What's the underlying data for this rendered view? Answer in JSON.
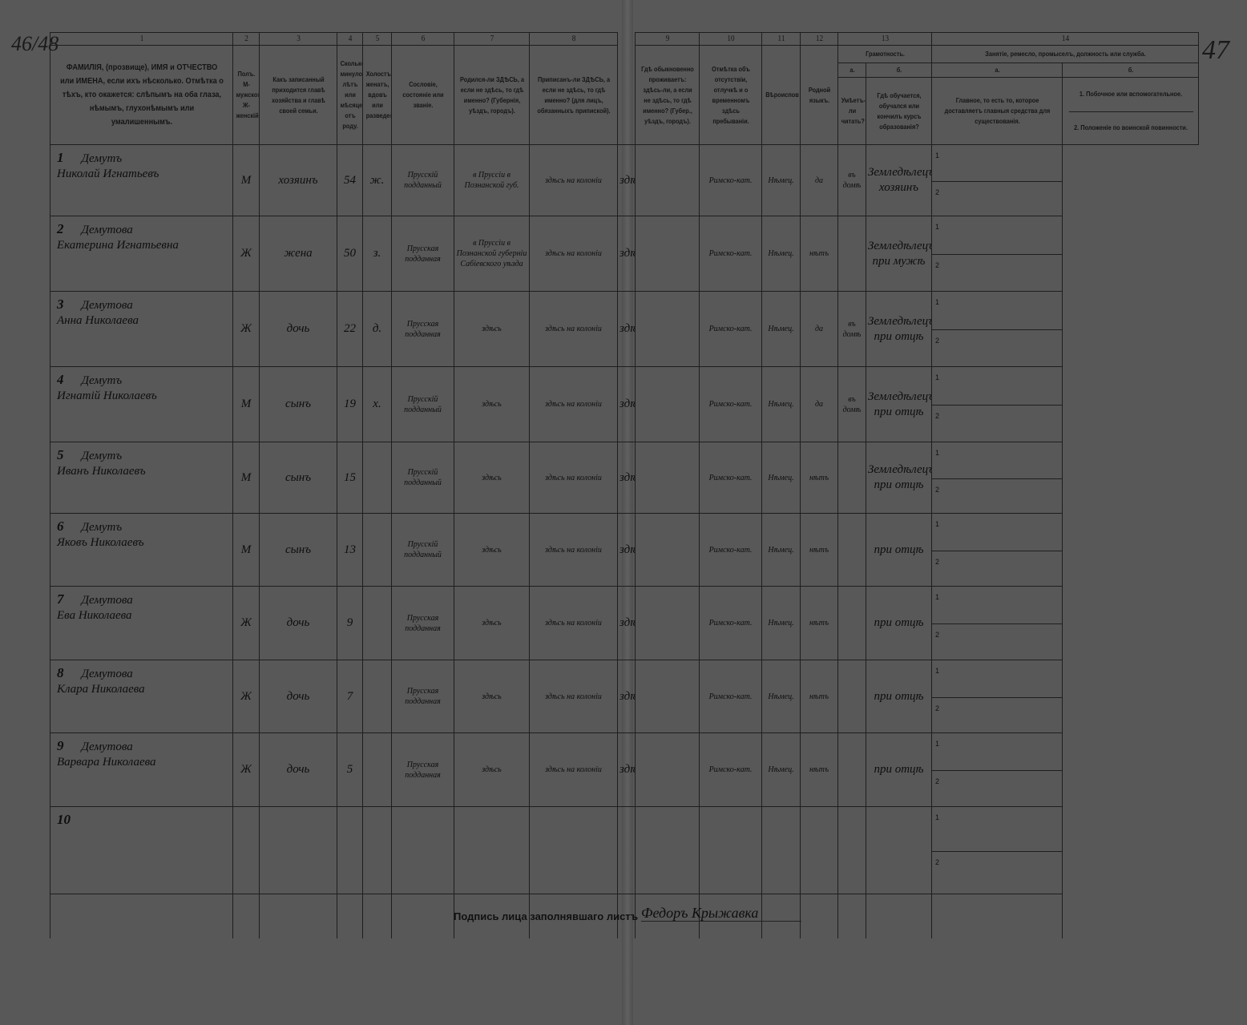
{
  "page_marks": {
    "left": "46/48",
    "right": "47"
  },
  "headers": {
    "numbers": [
      "1",
      "2",
      "3",
      "4",
      "5",
      "6",
      "7",
      "8",
      "9",
      "10",
      "11",
      "12",
      "13",
      "14"
    ],
    "c1": "ФАМИЛІЯ, (прозвище), ИМЯ и ОТЧЕСТВО или ИМЕНА, если ихъ нѣсколько. Отмѣтка о тѣхъ, кто окажется: слѣпымъ на оба глаза, нѣмымъ, глухонѣмымъ или умалишеннымъ.",
    "c2": "Полъ. М-мужской. Ж-женскій.",
    "c3": "Какъ записанный приходится главѣ хозяйства и главѣ своей семьи.",
    "c4": "Сколько минуло лѣтъ или мѣсяцевъ отъ роду.",
    "c5": "Холостъ, женатъ, вдовъ или разведенъ.",
    "c6": "Сословіе, состояніе или званіе.",
    "c7": "Родился-ли ЗДѢСЬ, а если не здѣсь, то гдѣ именно? (Губернія, уѣздъ, городъ).",
    "c8": "Приписанъ-ли ЗДѢСЬ, а если не здѣсь, то гдѣ именно? (для лицъ, обязанныхъ припиской).",
    "c9": "Гдѣ обыкновенно проживаетъ: здѣсь-ли, а если не здѣсь, то гдѣ именно? (Губер., уѣздъ, городъ).",
    "c10": "Отмѣтка объ отсутствіи, отлучкѣ и о временномъ здѣсь пребываніи.",
    "c11": "Вѣроисповѣданіе.",
    "c12": "Родной языкъ.",
    "c13": "Грамотность.",
    "c13a_letter": "а.",
    "c13a": "Умѣетъ-ли читать?",
    "c13b_letter": "б.",
    "c13b": "Гдѣ обучается, обучался или кончилъ курсъ образованія?",
    "c14": "Занятіе, ремесло, промыселъ, должность или служба.",
    "c14a_letter": "а.",
    "c14a": "Главное, то есть то, которое доставляетъ главныя средства для существованія.",
    "c14b_letter": "б.",
    "c14b1": "1. Побочное или вспомогательное.",
    "c14b2": "2. Положеніе по воинской повинности."
  },
  "sub_labels": [
    "1",
    "2"
  ],
  "rows": [
    {
      "n": "1",
      "surname": "Демутъ",
      "name": "Николай Игнатьевъ",
      "sex": "М",
      "relation": "хозяинъ",
      "age": "54",
      "marital": "ж.",
      "estate": "Прусскій подданный",
      "born": "в Пруссіи в Познанской губ.",
      "registered": "здѣсь на колоніи",
      "residence": "здѣсь",
      "absence": "",
      "religion": "Римско-кат.",
      "language": "Нѣмец.",
      "literate": "да",
      "education": "въ домѣ",
      "occupation": "Земледѣлецъ хозяинъ",
      "occ_side": "",
      "military": ""
    },
    {
      "n": "2",
      "surname": "Демутова",
      "name": "Екатерина Игнатьевна",
      "sex": "Ж",
      "relation": "жена",
      "age": "50",
      "marital": "з.",
      "estate": "Прусская подданная",
      "born": "в Пруссіи в Познанской губерніи Сабіевского уѣзда",
      "registered": "здѣсь на колоніи",
      "residence": "здѣсь",
      "absence": "",
      "religion": "Римско-кат.",
      "language": "Нѣмец.",
      "literate": "нѣтъ",
      "education": "",
      "occupation": "Земледѣлецъ при мужѣ",
      "occ_side": "",
      "military": ""
    },
    {
      "n": "3",
      "surname": "Демутова",
      "name": "Анна Николаева",
      "sex": "Ж",
      "relation": "дочь",
      "age": "22",
      "marital": "д.",
      "estate": "Прусская подданная",
      "born": "здѣсь",
      "registered": "здѣсь на колоніи",
      "residence": "здѣсь",
      "absence": "",
      "religion": "Римско-кат.",
      "language": "Нѣмец.",
      "literate": "да",
      "education": "въ домѣ",
      "occupation": "Земледѣлецъ при отцѣ",
      "occ_side": "",
      "military": ""
    },
    {
      "n": "4",
      "surname": "Демутъ",
      "name": "Игнатій Николаевъ",
      "sex": "М",
      "relation": "сынъ",
      "age": "19",
      "marital": "х.",
      "estate": "Прусскій подданный",
      "born": "здѣсь",
      "registered": "здѣсь на колоніи",
      "residence": "здѣсь",
      "absence": "",
      "religion": "Римско-кат.",
      "language": "Нѣмец.",
      "literate": "да",
      "education": "въ домѣ",
      "occupation": "Земледѣлецъ при отцѣ",
      "occ_side": "",
      "military": ""
    },
    {
      "n": "5",
      "surname": "Демутъ",
      "name": "Иванъ Николаевъ",
      "sex": "М",
      "relation": "сынъ",
      "age": "15",
      "marital": "",
      "estate": "Прусскій подданный",
      "born": "здѣсь",
      "registered": "здѣсь на колоніи",
      "residence": "здѣсь",
      "absence": "",
      "religion": "Римско-кат.",
      "language": "Нѣмец.",
      "literate": "нѣтъ",
      "education": "",
      "occupation": "Земледѣлецъ при отцѣ",
      "occ_side": "",
      "military": ""
    },
    {
      "n": "6",
      "surname": "Демутъ",
      "name": "Яковъ Николаевъ",
      "sex": "М",
      "relation": "сынъ",
      "age": "13",
      "marital": "",
      "estate": "Прусскій подданный",
      "born": "здѣсь",
      "registered": "здѣсь на колоніи",
      "residence": "здѣсь",
      "absence": "",
      "religion": "Римско-кат.",
      "language": "Нѣмец.",
      "literate": "нѣтъ",
      "education": "",
      "occupation": "при отцѣ",
      "occ_side": "",
      "military": ""
    },
    {
      "n": "7",
      "surname": "Демутова",
      "name": "Ева Николаева",
      "sex": "Ж",
      "relation": "дочь",
      "age": "9",
      "marital": "",
      "estate": "Прусская подданная",
      "born": "здѣсь",
      "registered": "здѣсь на колоніи",
      "residence": "здѣсь",
      "absence": "",
      "religion": "Римско-кат.",
      "language": "Нѣмец.",
      "literate": "нѣтъ",
      "education": "",
      "occupation": "при отцѣ",
      "occ_side": "",
      "military": ""
    },
    {
      "n": "8",
      "surname": "Демутова",
      "name": "Клара Николаева",
      "sex": "Ж",
      "relation": "дочь",
      "age": "7",
      "marital": "",
      "estate": "Прусская подданная",
      "born": "здѣсь",
      "registered": "здѣсь на колоніи",
      "residence": "здѣсь",
      "absence": "",
      "religion": "Римско-кат.",
      "language": "Нѣмец.",
      "literate": "нѣтъ",
      "education": "",
      "occupation": "при отцѣ",
      "occ_side": "",
      "military": ""
    },
    {
      "n": "9",
      "surname": "Демутова",
      "name": "Варвара Николаева",
      "sex": "Ж",
      "relation": "дочь",
      "age": "5",
      "marital": "",
      "estate": "Прусская подданная",
      "born": "здѣсь",
      "registered": "здѣсь на колоніи",
      "residence": "здѣсь",
      "absence": "",
      "religion": "Римско-кат.",
      "language": "Нѣмец.",
      "literate": "нѣтъ",
      "education": "",
      "occupation": "при отцѣ",
      "occ_side": "",
      "military": ""
    },
    {
      "n": "10",
      "surname": "",
      "name": "",
      "sex": "",
      "relation": "",
      "age": "",
      "marital": "",
      "estate": "",
      "born": "",
      "registered": "",
      "residence": "",
      "absence": "",
      "religion": "",
      "language": "",
      "literate": "",
      "education": "",
      "occupation": "",
      "occ_side": "",
      "military": ""
    }
  ],
  "signature": {
    "label": "Подпись лица заполнявшаго листъ",
    "value": "Федоръ Крыжавка"
  }
}
